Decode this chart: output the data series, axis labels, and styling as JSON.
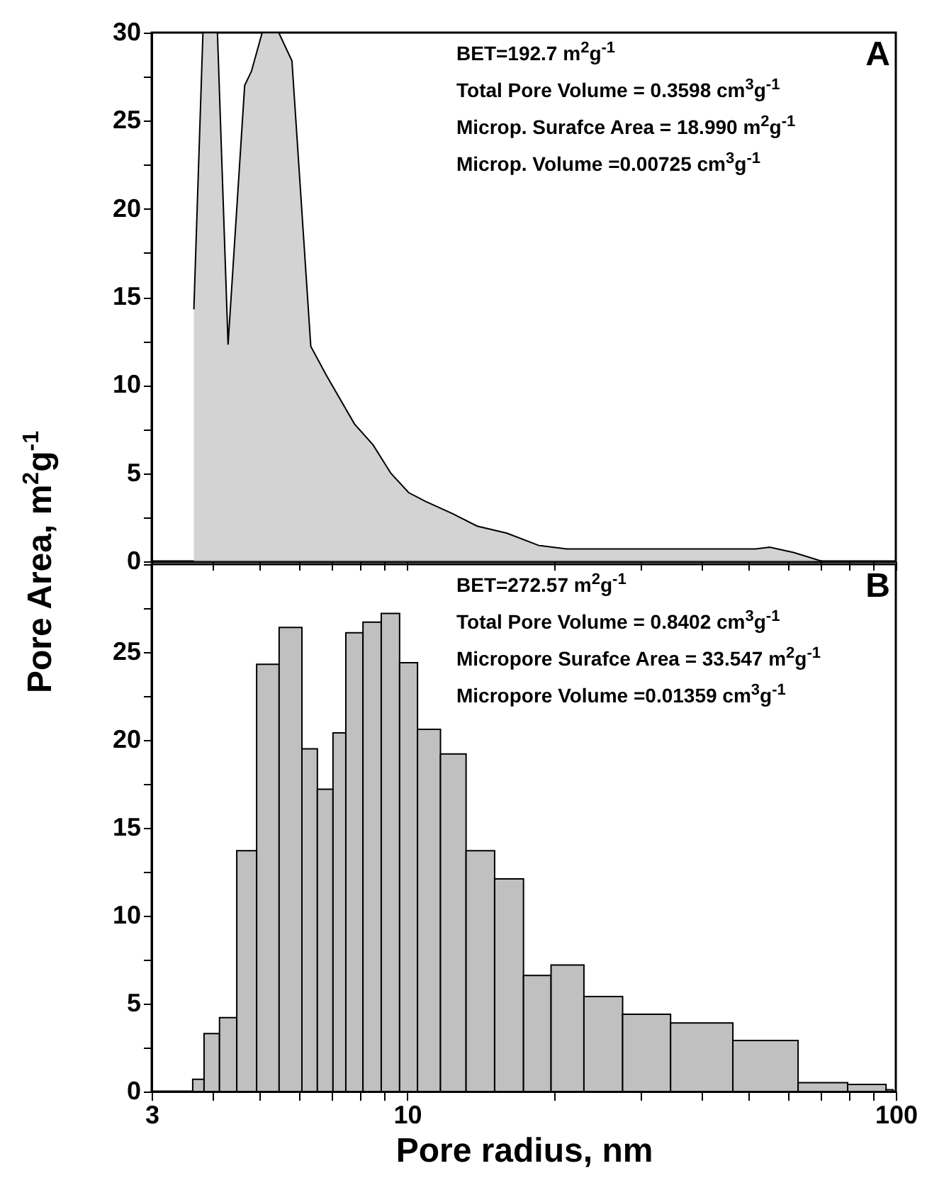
{
  "chart_data": [
    {
      "type": "area",
      "ylabel": "Pore Area, m$^{2}$g$^{-1}$",
      "color": "#c0c0c0",
      "x": [
        3.66,
        3.82,
        4.09,
        4.3,
        4.65,
        4.8,
        5.05,
        5.46,
        5.81,
        6.35,
        6.82,
        7.8,
        8.52,
        9.26,
        10.07,
        10.9,
        12.4,
        13.9,
        16.0,
        18.6,
        21.2,
        33.2,
        51.6,
        55.2,
        61.8,
        70.7,
        100
      ],
      "values": [
        14.3,
        30,
        30,
        12.3,
        27.0,
        27.8,
        30,
        30,
        28.4,
        12.2,
        10.6,
        7.8,
        6.6,
        5.0,
        3.9,
        3.4,
        2.7,
        2.0,
        1.6,
        0.9,
        0.7,
        0.7,
        0.7,
        0.8,
        0.5,
        0,
        0
      ],
      "log": "x",
      "xlim": [
        3,
        100
      ],
      "xticks": [
        3,
        {
          "value": 4,
          "label": null
        },
        {
          "value": 5,
          "label": null
        },
        {
          "value": 6,
          "label": null
        },
        {
          "value": 7,
          "label": null
        },
        {
          "value": 8,
          "label": null
        },
        {
          "value": 9,
          "label": null
        },
        10,
        {
          "value": 20,
          "label": null
        },
        {
          "value": 30,
          "label": null
        },
        {
          "value": 40,
          "label": null
        },
        {
          "value": 50,
          "label": null
        },
        {
          "value": 60,
          "label": null
        },
        {
          "value": 70,
          "label": null
        },
        {
          "value": 80,
          "label": null
        },
        {
          "value": 90,
          "label": null
        },
        100
      ],
      "ylim": [
        0,
        30
      ],
      "yticks": [
        0,
        {
          "value": 2.5,
          "label": null
        },
        5,
        {
          "value": 7.5,
          "label": null
        },
        10,
        {
          "value": 12.5,
          "label": null
        },
        15,
        {
          "value": 17.5,
          "label": null
        },
        20,
        {
          "value": 22.5,
          "label": null
        },
        25,
        {
          "value": 27.5,
          "label": null
        },
        30
      ],
      "tick_labels": "y",
      "annotations": [
        "A",
        "BET=192.7  m$^{2}$g$^{-1}$",
        "Total Pore Volume = 0.3598 cm$^{3}$g$^{-1}$",
        "Microp. Surafce Area = 18.990 m$^{2}$g$^{-1}$",
        "Microp. Volume =0.00725 cm$^{3}$g$^{-1}$"
      ]
    },
    {
      "type": "histogram",
      "xlabel": "Pore radius, nm",
      "color": "#c0c0c0",
      "bins": [
        3.64,
        3.84,
        4.13,
        4.48,
        4.92,
        5.47,
        6.09,
        6.55,
        7.05,
        7.49,
        8.12,
        8.85,
        9.65,
        10.5,
        11.7,
        13.2,
        15.1,
        17.3,
        19.7,
        23.0,
        27.6,
        34.6,
        46.4,
        63.1,
        79.7,
        95.5,
        98.7
      ],
      "log": "x",
      "values": [
        0.7,
        3.3,
        4.2,
        13.7,
        24.3,
        26.4,
        19.5,
        17.2,
        20.4,
        26.1,
        26.7,
        27.2,
        24.4,
        20.6,
        19.2,
        13.7,
        12.1,
        6.6,
        7.2,
        5.4,
        4.4,
        3.9,
        2.9,
        0.5,
        0.4,
        0.1
      ],
      "xlim": [
        3,
        100
      ],
      "xticks": [
        3,
        {
          "value": 4,
          "label": null
        },
        {
          "value": 5,
          "label": null
        },
        {
          "value": 6,
          "label": null
        },
        {
          "value": 7,
          "label": null
        },
        {
          "value": 8,
          "label": null
        },
        {
          "value": 9,
          "label": null
        },
        10,
        {
          "value": 20,
          "label": null
        },
        {
          "value": 30,
          "label": null
        },
        {
          "value": 40,
          "label": null
        },
        {
          "value": 50,
          "label": null
        },
        {
          "value": 60,
          "label": null
        },
        {
          "value": 70,
          "label": null
        },
        {
          "value": 80,
          "label": null
        },
        {
          "value": 90,
          "label": null
        },
        100
      ],
      "ylim": [
        0,
        30
      ],
      "yticks": [
        0,
        {
          "value": 2.5,
          "label": null
        },
        5,
        {
          "value": 7.5,
          "label": null
        },
        10,
        {
          "value": 12.5,
          "label": null
        },
        15,
        {
          "value": 17.5,
          "label": null
        },
        20,
        {
          "value": 22.5,
          "label": null
        },
        25,
        {
          "value": 27.5,
          "label": null
        },
        {
          "value": 30,
          "label": null
        }
      ],
      "annotations": [
        "B",
        "BET=272.57  m$^{2}$g$^{-1}$",
        "Total Pore Volume = 0.8402 cm$^{3}$g$^{-1}$",
        "Micropore Surafce Area = 33.547 m$^{2}$g$^{-1}$",
        "Micropore Volume =0.01359 cm$^{3}$g$^{-1}$"
      ]
    }
  ]
}
